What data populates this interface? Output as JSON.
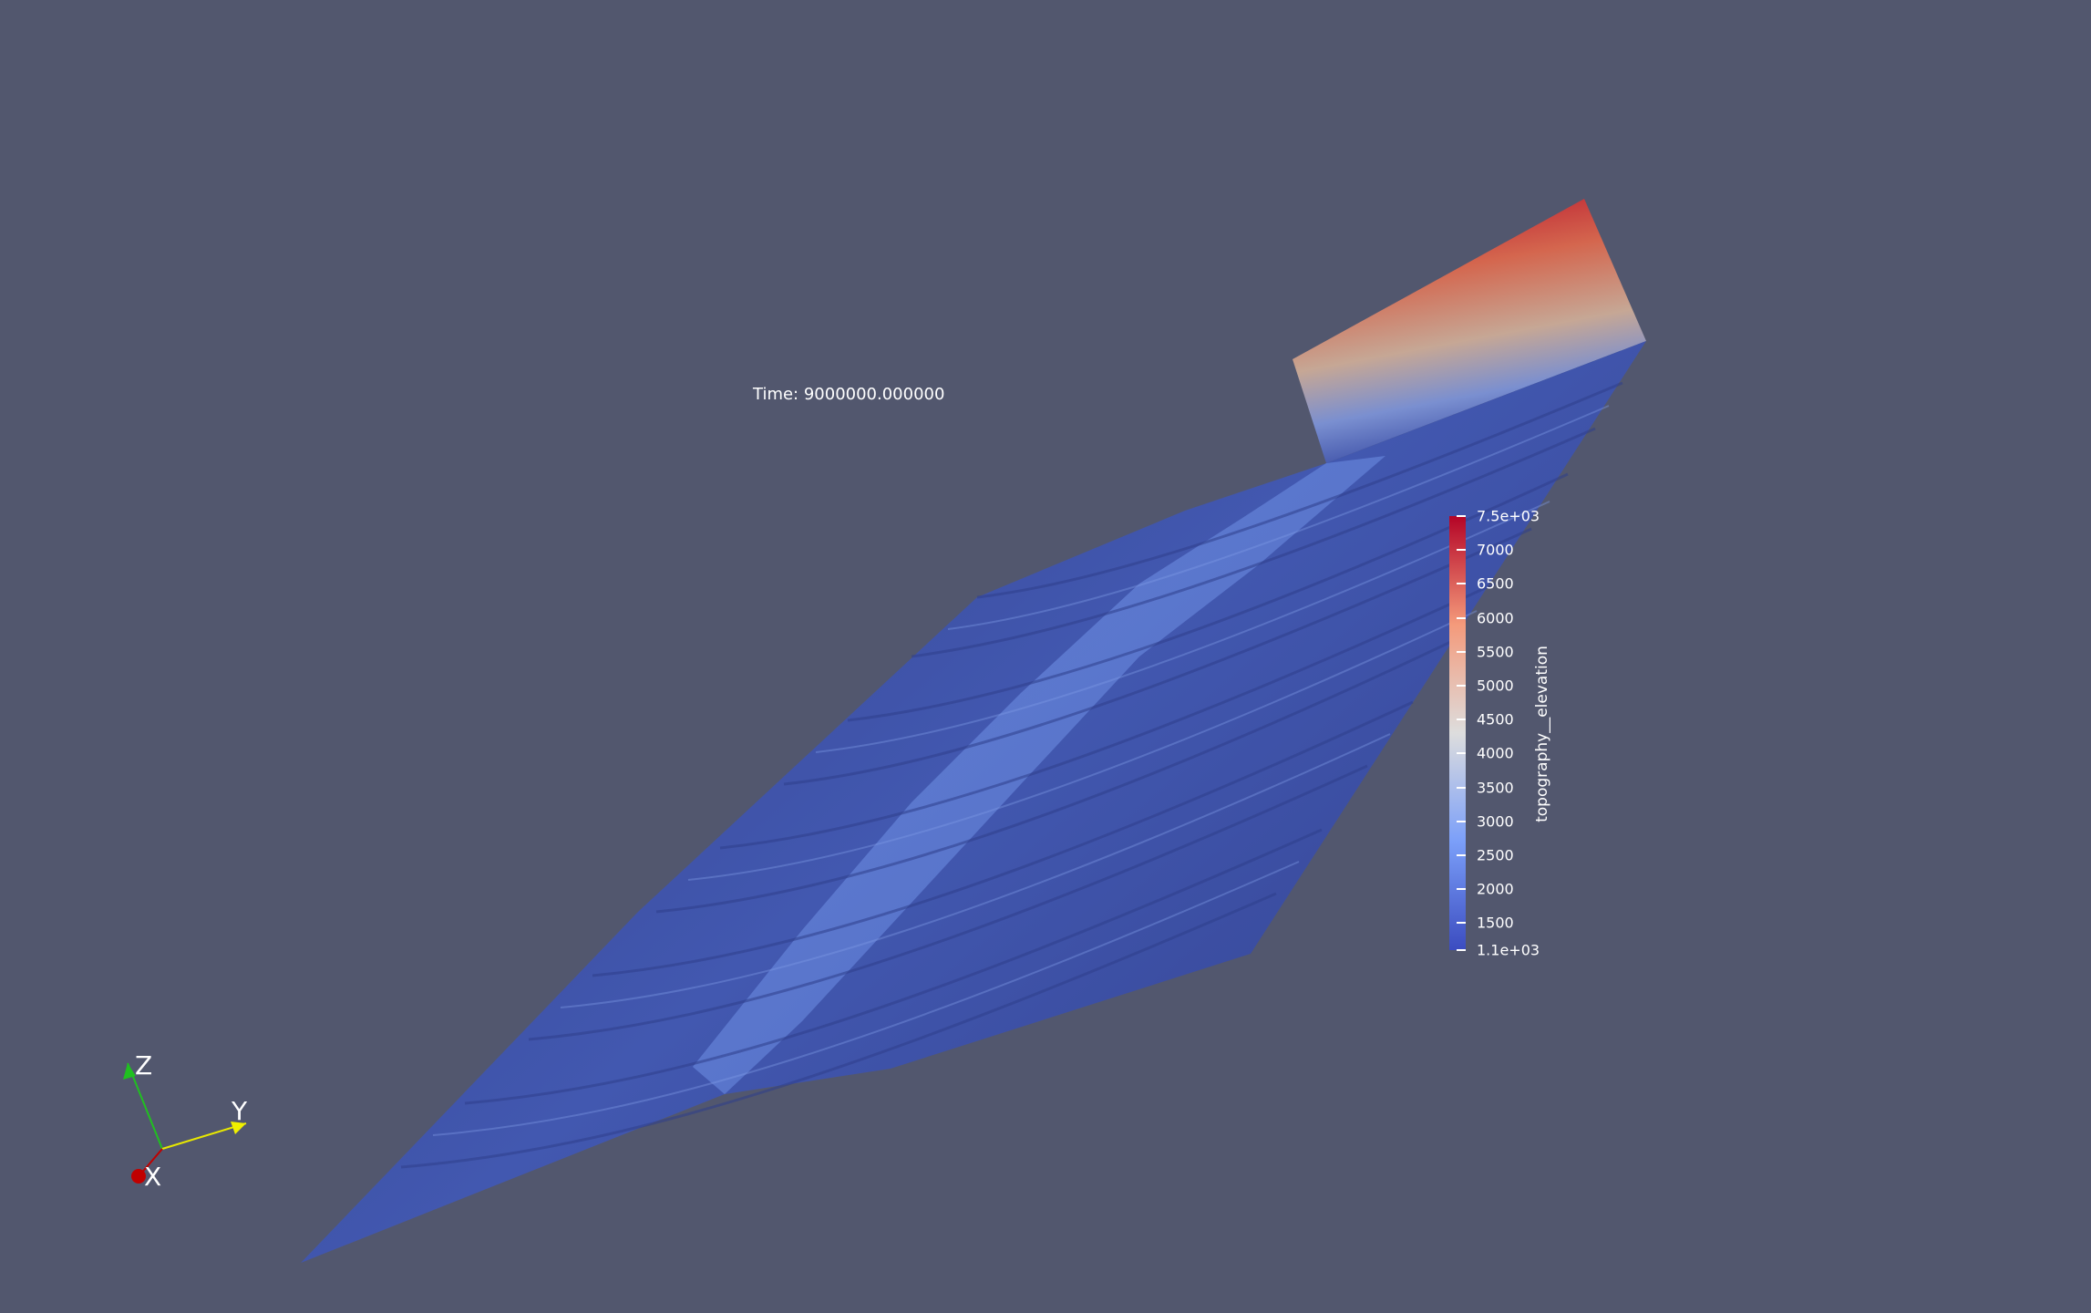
{
  "time_annotation": "Time: 9000000.000000",
  "scalar_bar": {
    "title": "topography__elevation",
    "range": [
      1100,
      7500
    ],
    "ticks": [
      {
        "value": 7500,
        "label": "7.5e+03"
      },
      {
        "value": 7000,
        "label": "7000"
      },
      {
        "value": 6500,
        "label": "6500"
      },
      {
        "value": 6000,
        "label": "6000"
      },
      {
        "value": 5500,
        "label": "5500"
      },
      {
        "value": 5000,
        "label": "5000"
      },
      {
        "value": 4500,
        "label": "4500"
      },
      {
        "value": 4000,
        "label": "4000"
      },
      {
        "value": 3500,
        "label": "3500"
      },
      {
        "value": 3000,
        "label": "3000"
      },
      {
        "value": 2500,
        "label": "2500"
      },
      {
        "value": 2000,
        "label": "2000"
      },
      {
        "value": 1500,
        "label": "1500"
      },
      {
        "value": 1100,
        "label": "1.1e+03"
      }
    ],
    "colormap": "Cool to Warm",
    "colors": [
      "#3b4cc0",
      "#dddddd",
      "#b40426"
    ]
  },
  "orientation_axes": {
    "x_label": "X",
    "y_label": "Y",
    "z_label": "Z",
    "x_color": "#c00000",
    "y_color": "#f0f000",
    "z_color": "#20c020"
  },
  "colors": {
    "background": "#52576e",
    "surface_dark": "#3a4d9e",
    "surface_light": "#8eaaf0"
  }
}
